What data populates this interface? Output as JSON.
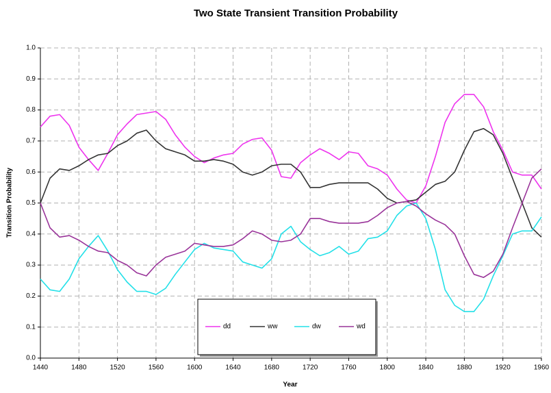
{
  "chart_data": {
    "type": "line",
    "title": "Two State Transient Transition Probability",
    "x_label": "Year",
    "y_label": "Transition Probability",
    "x": [
      1440,
      1450,
      1460,
      1470,
      1480,
      1490,
      1500,
      1510,
      1520,
      1530,
      1540,
      1550,
      1560,
      1570,
      1580,
      1590,
      1600,
      1610,
      1620,
      1630,
      1640,
      1650,
      1660,
      1670,
      1680,
      1690,
      1700,
      1710,
      1720,
      1730,
      1740,
      1750,
      1760,
      1770,
      1780,
      1790,
      1800,
      1810,
      1820,
      1830,
      1840,
      1850,
      1860,
      1870,
      1880,
      1890,
      1900,
      1910,
      1920,
      1930,
      1940,
      1950,
      1960
    ],
    "series": [
      {
        "name": "dd",
        "color": "#ee33ee",
        "values": [
          0.745,
          0.78,
          0.785,
          0.75,
          0.68,
          0.64,
          0.605,
          0.66,
          0.72,
          0.755,
          0.785,
          0.79,
          0.795,
          0.77,
          0.72,
          0.68,
          0.65,
          0.63,
          0.645,
          0.655,
          0.66,
          0.69,
          0.705,
          0.71,
          0.67,
          0.585,
          0.58,
          0.63,
          0.655,
          0.675,
          0.66,
          0.64,
          0.665,
          0.66,
          0.62,
          0.61,
          0.59,
          0.545,
          0.51,
          0.5,
          0.555,
          0.65,
          0.76,
          0.82,
          0.85,
          0.85,
          0.81,
          0.73,
          0.67,
          0.6,
          0.59,
          0.59,
          0.545
        ]
      },
      {
        "name": "ww",
        "color": "#333333",
        "values": [
          0.5,
          0.58,
          0.61,
          0.605,
          0.62,
          0.64,
          0.655,
          0.66,
          0.685,
          0.7,
          0.725,
          0.735,
          0.7,
          0.675,
          0.665,
          0.655,
          0.635,
          0.635,
          0.64,
          0.635,
          0.625,
          0.6,
          0.59,
          0.6,
          0.62,
          0.625,
          0.625,
          0.6,
          0.55,
          0.55,
          0.56,
          0.565,
          0.565,
          0.565,
          0.565,
          0.545,
          0.515,
          0.5,
          0.505,
          0.51,
          0.535,
          0.56,
          0.57,
          0.6,
          0.67,
          0.73,
          0.74,
          0.72,
          0.66,
          0.58,
          0.5,
          0.42,
          0.39
        ]
      },
      {
        "name": "dw",
        "color": "#22e0e8",
        "values": [
          0.255,
          0.22,
          0.215,
          0.255,
          0.32,
          0.36,
          0.395,
          0.345,
          0.285,
          0.245,
          0.215,
          0.215,
          0.205,
          0.225,
          0.27,
          0.31,
          0.35,
          0.37,
          0.355,
          0.35,
          0.345,
          0.31,
          0.3,
          0.29,
          0.32,
          0.4,
          0.425,
          0.375,
          0.35,
          0.33,
          0.34,
          0.36,
          0.335,
          0.345,
          0.385,
          0.39,
          0.41,
          0.46,
          0.49,
          0.5,
          0.45,
          0.35,
          0.22,
          0.17,
          0.15,
          0.15,
          0.19,
          0.265,
          0.33,
          0.4,
          0.41,
          0.41,
          0.455
        ]
      },
      {
        "name": "wd",
        "color": "#993399",
        "values": [
          0.5,
          0.42,
          0.39,
          0.395,
          0.38,
          0.36,
          0.345,
          0.34,
          0.315,
          0.3,
          0.275,
          0.265,
          0.3,
          0.325,
          0.335,
          0.345,
          0.37,
          0.365,
          0.36,
          0.36,
          0.365,
          0.385,
          0.41,
          0.4,
          0.38,
          0.375,
          0.38,
          0.4,
          0.45,
          0.45,
          0.44,
          0.435,
          0.435,
          0.435,
          0.44,
          0.46,
          0.485,
          0.5,
          0.505,
          0.49,
          0.465,
          0.445,
          0.43,
          0.4,
          0.33,
          0.27,
          0.26,
          0.28,
          0.335,
          0.42,
          0.5,
          0.58,
          0.61
        ]
      }
    ],
    "xlim": [
      1440,
      1960
    ],
    "xticks": [
      1440,
      1480,
      1520,
      1560,
      1600,
      1640,
      1680,
      1720,
      1760,
      1800,
      1840,
      1880,
      1920,
      1960
    ],
    "ylim": [
      0,
      1
    ],
    "yticks": [
      {
        "value": 0,
        "label": "0.0"
      },
      0.1,
      0.2,
      0.3,
      0.4,
      0.5,
      0.6,
      0.7,
      0.8,
      0.9,
      {
        "value": 1,
        "label": "1.0"
      }
    ],
    "grid": true
  }
}
